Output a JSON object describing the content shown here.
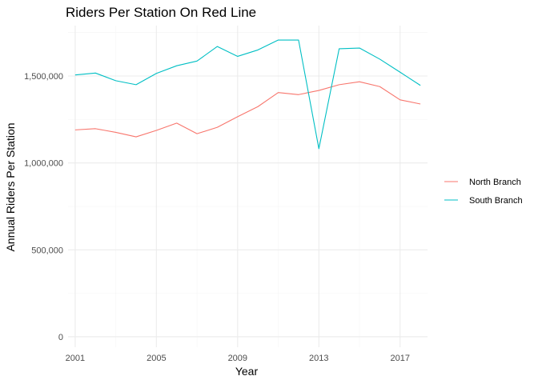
{
  "chart_data": {
    "type": "line",
    "title": "Riders Per Station On Red Line",
    "xlabel": "Year",
    "ylabel": "Annual Riders Per Station",
    "xlim": [
      2000.65,
      2018.35
    ],
    "ylim": [
      -60000,
      1790000
    ],
    "x_ticks": [
      2001,
      2005,
      2009,
      2013,
      2017
    ],
    "x_tick_labels": [
      "2001",
      "2005",
      "2009",
      "2013",
      "2017"
    ],
    "y_ticks": [
      0,
      500000,
      1000000,
      1500000
    ],
    "y_tick_labels": [
      "0",
      "500,000",
      "1,000,000",
      "1,500,000"
    ],
    "grid": true,
    "legend_position": "right",
    "x": [
      2001,
      2002,
      2003,
      2004,
      2005,
      2006,
      2007,
      2008,
      2009,
      2010,
      2011,
      2012,
      2013,
      2014,
      2015,
      2016,
      2017,
      2018
    ],
    "series": [
      {
        "name": "North Branch",
        "color": "#F8766D",
        "values": [
          1190000,
          1197000,
          1176000,
          1150000,
          1187000,
          1229000,
          1168000,
          1205000,
          1266000,
          1324000,
          1405000,
          1393000,
          1417000,
          1450000,
          1467000,
          1439000,
          1363000,
          1339000
        ]
      },
      {
        "name": "South Branch",
        "color": "#00BFC4",
        "values": [
          1506000,
          1517000,
          1473000,
          1450000,
          1515000,
          1559000,
          1586000,
          1670000,
          1613000,
          1650000,
          1707000,
          1707000,
          1082000,
          1657000,
          1661000,
          1597000,
          1522000,
          1446000
        ]
      }
    ]
  }
}
